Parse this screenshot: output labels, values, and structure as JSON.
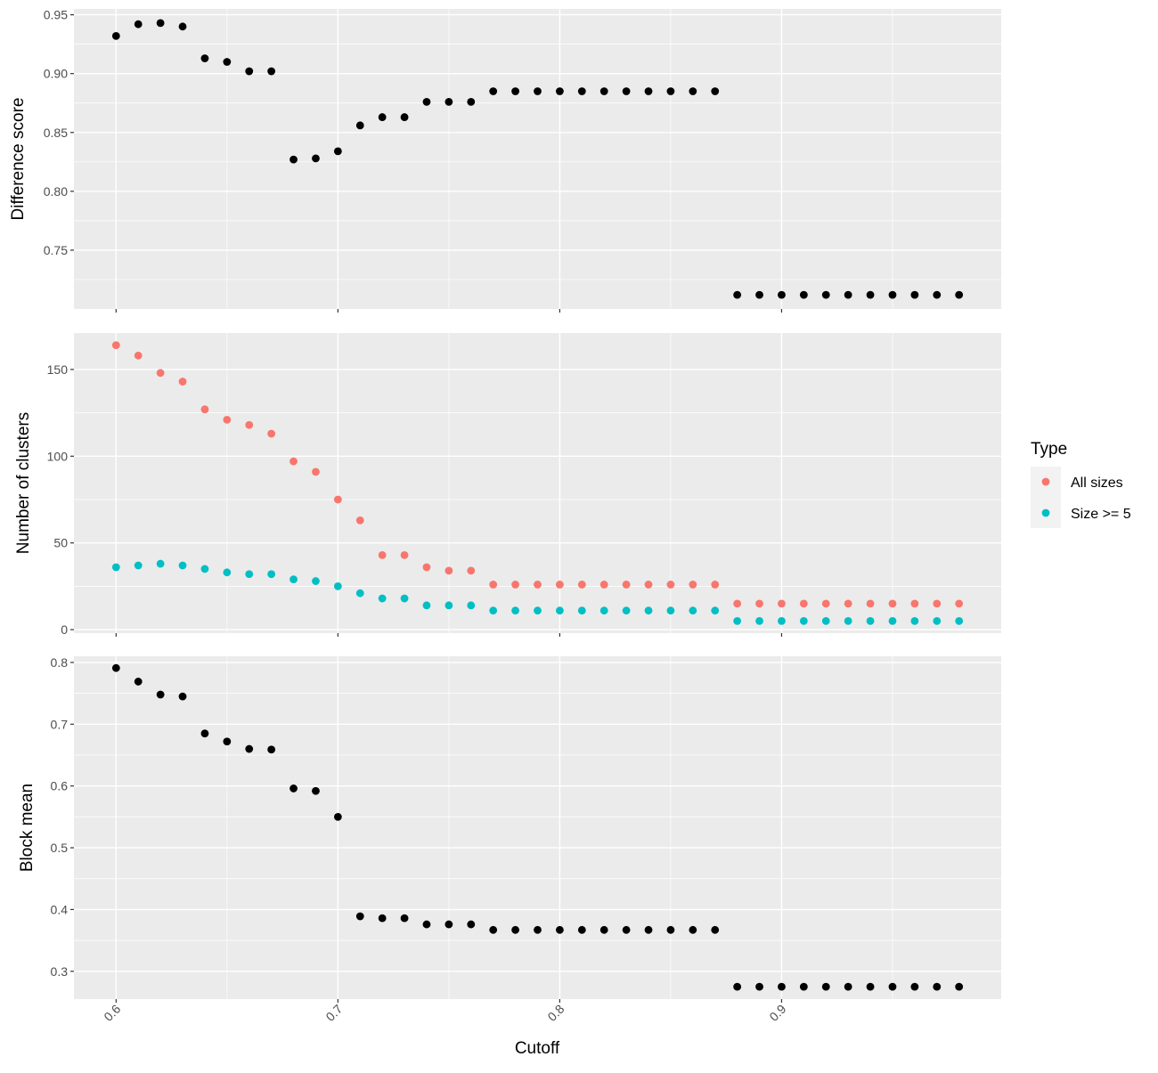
{
  "chart_data": [
    {
      "type": "scatter",
      "ylabel": "Difference score",
      "xlim": [
        0.581,
        0.999
      ],
      "ylim": [
        0.7,
        0.955
      ],
      "xticks": [
        0.6,
        0.7,
        0.8,
        0.9
      ],
      "yticks": [
        0.75,
        0.8,
        0.85,
        0.9,
        0.95
      ],
      "ytick_labels": [
        "0.75",
        "0.80",
        "0.85",
        "0.90",
        "0.95"
      ],
      "x": [
        0.6,
        0.61,
        0.62,
        0.63,
        0.64,
        0.65,
        0.66,
        0.67,
        0.68,
        0.69,
        0.7,
        0.71,
        0.72,
        0.73,
        0.74,
        0.75,
        0.76,
        0.77,
        0.78,
        0.79,
        0.8,
        0.81,
        0.82,
        0.83,
        0.84,
        0.85,
        0.86,
        0.87,
        0.88,
        0.89,
        0.9,
        0.91,
        0.92,
        0.93,
        0.94,
        0.95,
        0.96,
        0.97,
        0.98
      ],
      "series": [
        {
          "color": "#000000",
          "values": [
            0.932,
            0.942,
            0.943,
            0.94,
            0.913,
            0.91,
            0.902,
            0.902,
            0.827,
            0.828,
            0.834,
            0.856,
            0.863,
            0.863,
            0.876,
            0.876,
            0.876,
            0.885,
            0.885,
            0.885,
            0.885,
            0.885,
            0.885,
            0.885,
            0.885,
            0.885,
            0.885,
            0.885,
            0.712,
            0.712,
            0.712,
            0.712,
            0.712,
            0.712,
            0.712,
            0.712,
            0.712,
            0.712,
            0.712
          ]
        }
      ]
    },
    {
      "type": "scatter",
      "ylabel": "Number of clusters",
      "xlim": [
        0.581,
        0.999
      ],
      "ylim": [
        -2,
        171
      ],
      "xticks": [
        0.6,
        0.7,
        0.8,
        0.9
      ],
      "yticks": [
        0,
        50,
        100,
        150
      ],
      "ytick_labels": [
        "0",
        "50",
        "100",
        "150"
      ],
      "x": [
        0.6,
        0.61,
        0.62,
        0.63,
        0.64,
        0.65,
        0.66,
        0.67,
        0.68,
        0.69,
        0.7,
        0.71,
        0.72,
        0.73,
        0.74,
        0.75,
        0.76,
        0.77,
        0.78,
        0.79,
        0.8,
        0.81,
        0.82,
        0.83,
        0.84,
        0.85,
        0.86,
        0.87,
        0.88,
        0.89,
        0.9,
        0.91,
        0.92,
        0.93,
        0.94,
        0.95,
        0.96,
        0.97,
        0.98
      ],
      "legend": {
        "title": "Type",
        "position": "right"
      },
      "series": [
        {
          "name": "All sizes",
          "color": "#F8766D",
          "values": [
            164,
            158,
            148,
            143,
            127,
            121,
            118,
            113,
            97,
            91,
            75,
            63,
            43,
            43,
            36,
            34,
            34,
            26,
            26,
            26,
            26,
            26,
            26,
            26,
            26,
            26,
            26,
            26,
            15,
            15,
            15,
            15,
            15,
            15,
            15,
            15,
            15,
            15,
            15
          ]
        },
        {
          "name": "Size >= 5",
          "color": "#00BFC4",
          "values": [
            36,
            37,
            38,
            37,
            35,
            33,
            32,
            32,
            29,
            28,
            25,
            21,
            18,
            18,
            14,
            14,
            14,
            11,
            11,
            11,
            11,
            11,
            11,
            11,
            11,
            11,
            11,
            11,
            5,
            5,
            5,
            5,
            5,
            5,
            5,
            5,
            5,
            5,
            5
          ]
        }
      ]
    },
    {
      "type": "scatter",
      "ylabel": "Block mean",
      "xlabel": "Cutoff",
      "xlim": [
        0.581,
        0.999
      ],
      "ylim": [
        0.255,
        0.81
      ],
      "xticks": [
        0.6,
        0.7,
        0.8,
        0.9
      ],
      "xtick_labels": [
        "0.6",
        "0.7",
        "0.8",
        "0.9"
      ],
      "yticks": [
        0.3,
        0.4,
        0.5,
        0.6,
        0.7,
        0.8
      ],
      "ytick_labels": [
        "0.3",
        "0.4",
        "0.5",
        "0.6",
        "0.7",
        "0.8"
      ],
      "x": [
        0.6,
        0.61,
        0.62,
        0.63,
        0.64,
        0.65,
        0.66,
        0.67,
        0.68,
        0.69,
        0.7,
        0.71,
        0.72,
        0.73,
        0.74,
        0.75,
        0.76,
        0.77,
        0.78,
        0.79,
        0.8,
        0.81,
        0.82,
        0.83,
        0.84,
        0.85,
        0.86,
        0.87,
        0.88,
        0.89,
        0.9,
        0.91,
        0.92,
        0.93,
        0.94,
        0.95,
        0.96,
        0.97,
        0.98
      ],
      "series": [
        {
          "color": "#000000",
          "values": [
            0.791,
            0.769,
            0.748,
            0.745,
            0.685,
            0.672,
            0.66,
            0.659,
            0.596,
            0.592,
            0.55,
            0.389,
            0.386,
            0.386,
            0.376,
            0.376,
            0.376,
            0.367,
            0.367,
            0.367,
            0.367,
            0.367,
            0.367,
            0.367,
            0.367,
            0.367,
            0.367,
            0.367,
            0.275,
            0.275,
            0.275,
            0.275,
            0.275,
            0.275,
            0.275,
            0.275,
            0.275,
            0.275,
            0.275
          ]
        }
      ]
    }
  ]
}
